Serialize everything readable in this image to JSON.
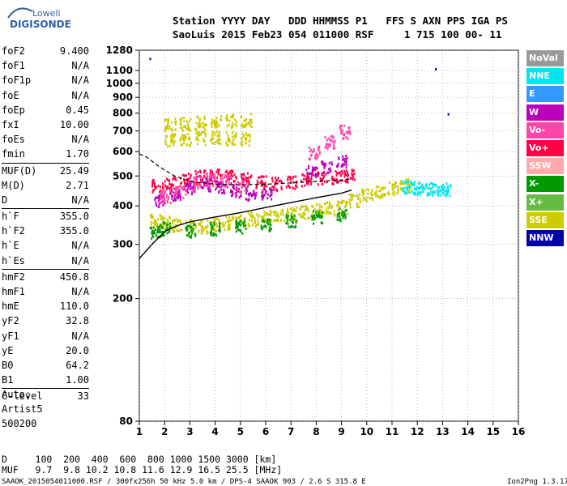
{
  "logo": {
    "line1": "Lowell",
    "line2": "DIGISONDE"
  },
  "header": {
    "line1": "Station YYYY DAY   DDD HHMMSS P1   FFS S AXN PPS IGA PS",
    "line2": "SaoLuis 2015 Feb23 054 011000 RSF     1 715 100 00- 11"
  },
  "params": [
    {
      "name": "foF2",
      "value": "9.400"
    },
    {
      "name": "foF1",
      "value": "N/A"
    },
    {
      "name": "foF1p",
      "value": "N/A"
    },
    {
      "name": "foE",
      "value": "N/A"
    },
    {
      "name": "foEp",
      "value": "0.45"
    },
    {
      "name": "fxI",
      "value": "10.00"
    },
    {
      "name": "foEs",
      "value": "N/A"
    },
    {
      "name": "fmin",
      "value": "1.70"
    },
    {
      "name": "MUF(D)",
      "value": "25.49"
    },
    {
      "name": "M(D)",
      "value": "2.71"
    },
    {
      "name": "D",
      "value": "N/A"
    },
    {
      "name": "h`F",
      "value": "355.0"
    },
    {
      "name": "h`F2",
      "value": "355.0"
    },
    {
      "name": "h`E",
      "value": "N/A"
    },
    {
      "name": "h`Es",
      "value": "N/A"
    },
    {
      "name": "hmF2",
      "value": "450.8"
    },
    {
      "name": "hmF1",
      "value": "N/A"
    },
    {
      "name": "hmE",
      "value": "110.0"
    },
    {
      "name": "yF2",
      "value": "32.8"
    },
    {
      "name": "yF1",
      "value": "N/A"
    },
    {
      "name": "yE",
      "value": "20.0"
    },
    {
      "name": "B0",
      "value": "64.2"
    },
    {
      "name": "B1",
      "value": "1.00"
    },
    {
      "name": "C-level",
      "value": "33"
    }
  ],
  "auto": {
    "line1": "Auto:",
    "line2": "Artist5",
    "line3": "500200"
  },
  "legend": [
    {
      "label": "NoVal",
      "color": "#999999"
    },
    {
      "label": "NNE",
      "color": "#00e5ee"
    },
    {
      "label": "E",
      "color": "#3399ff"
    },
    {
      "label": "W",
      "color": "#bb00bb"
    },
    {
      "label": "Vo-",
      "color": "#ff44aa"
    },
    {
      "label": "Vo+",
      "color": "#ff0044"
    },
    {
      "label": "SSW",
      "color": "#ffaaaa"
    },
    {
      "label": "X-",
      "color": "#009900"
    },
    {
      "label": "X+",
      "color": "#66bb44"
    },
    {
      "label": "SSE",
      "color": "#cccc00"
    },
    {
      "label": "NNW",
      "color": "#0000aa"
    }
  ],
  "footer": {
    "dist_line": "D     100  200  400  600  800 1000 1500 3000 [km]",
    "muf_line": "MUF   9.7  9.8 10.2 10.8 11.6 12.9 16.5 25.5 [MHz]",
    "file_line": "SAAOK_2015054011000.RSF / 300fx256h 50 kHz 5.0 km / DPS-4 SAAOK 903 / 2.6 S 315.8 E",
    "version": "Ion2Png 1.3.17"
  },
  "chart_data": {
    "type": "scatter",
    "xlim": [
      1,
      16
    ],
    "ylim": [
      80,
      1280
    ],
    "yscale": "log",
    "x_ticks": [
      "1",
      "2",
      "3",
      "4",
      "5",
      "6",
      "7",
      "8",
      "9",
      "10",
      "11",
      "12",
      "13",
      "14",
      "15",
      "16"
    ],
    "y_ticks": [
      "80",
      "200",
      "300",
      "400",
      "500",
      "600",
      "700",
      "800",
      "900",
      "1000",
      "1100",
      "1280"
    ],
    "grid": true,
    "legend_position": "right",
    "series": [
      {
        "name": "SSE",
        "points": [
          [
            1.6,
            360
          ],
          [
            2.0,
            355
          ],
          [
            2.5,
            350
          ],
          [
            3.0,
            345
          ],
          [
            3.5,
            345
          ],
          [
            4.0,
            350
          ],
          [
            4.5,
            355
          ],
          [
            5.0,
            360
          ],
          [
            5.5,
            365
          ],
          [
            6.0,
            370
          ],
          [
            6.5,
            375
          ],
          [
            7.0,
            380
          ],
          [
            7.5,
            385
          ],
          [
            8.0,
            390
          ],
          [
            8.5,
            395
          ],
          [
            9.0,
            400
          ],
          [
            9.5,
            420
          ],
          [
            10.0,
            440
          ],
          [
            10.5,
            450
          ],
          [
            11.0,
            460
          ],
          [
            11.5,
            470
          ],
          [
            2.2,
            740
          ],
          [
            2.8,
            745
          ],
          [
            3.4,
            750
          ],
          [
            4.0,
            755
          ],
          [
            4.6,
            760
          ],
          [
            5.2,
            765
          ],
          [
            2.2,
            660
          ],
          [
            2.8,
            665
          ],
          [
            3.4,
            670
          ],
          [
            4.0,
            672
          ],
          [
            4.6,
            668
          ],
          [
            5.2,
            665
          ]
        ]
      },
      {
        "name": "Vo+",
        "points": [
          [
            1.7,
            470
          ],
          [
            2.2,
            480
          ],
          [
            2.8,
            490
          ],
          [
            3.4,
            500
          ],
          [
            4.0,
            505
          ],
          [
            4.6,
            500
          ],
          [
            5.2,
            490
          ],
          [
            5.8,
            480
          ],
          [
            6.4,
            475
          ],
          [
            7.0,
            480
          ],
          [
            7.6,
            490
          ],
          [
            8.2,
            495
          ],
          [
            8.8,
            500
          ],
          [
            9.3,
            505
          ]
        ]
      },
      {
        "name": "W",
        "points": [
          [
            1.8,
            420
          ],
          [
            2.4,
            440
          ],
          [
            3.0,
            460
          ],
          [
            3.6,
            470
          ],
          [
            4.2,
            465
          ],
          [
            4.8,
            450
          ],
          [
            5.4,
            440
          ],
          [
            6.0,
            445
          ],
          [
            7.8,
            520
          ],
          [
            8.4,
            540
          ],
          [
            9.0,
            560
          ]
        ]
      },
      {
        "name": "Vo-",
        "points": [
          [
            2.0,
            430
          ],
          [
            2.6,
            450
          ],
          [
            3.2,
            480
          ],
          [
            3.8,
            490
          ],
          [
            4.4,
            485
          ],
          [
            5.0,
            470
          ],
          [
            7.9,
            600
          ],
          [
            8.5,
            650
          ],
          [
            9.1,
            700
          ]
        ]
      },
      {
        "name": "X-",
        "points": [
          [
            1.6,
            330
          ],
          [
            2.0,
            340
          ],
          [
            3.0,
            335
          ],
          [
            4.0,
            340
          ],
          [
            5.0,
            345
          ],
          [
            6.0,
            350
          ],
          [
            7.0,
            360
          ],
          [
            8.0,
            370
          ],
          [
            9.0,
            380
          ]
        ]
      },
      {
        "name": "NNE",
        "points": [
          [
            11.6,
            462
          ],
          [
            12.0,
            460
          ],
          [
            12.4,
            458
          ],
          [
            12.8,
            456
          ],
          [
            13.1,
            455
          ]
        ]
      },
      {
        "name": "NNW",
        "points": [
          [
            1.4,
            1210
          ],
          [
            12.7,
            1120
          ],
          [
            13.2,
            800
          ]
        ]
      }
    ],
    "profile_line": [
      [
        1.0,
        270
      ],
      [
        1.5,
        300
      ],
      [
        2.0,
        330
      ],
      [
        2.5,
        345
      ],
      [
        3.0,
        355
      ],
      [
        4.0,
        368
      ],
      [
        5.0,
        380
      ],
      [
        6.0,
        395
      ],
      [
        7.0,
        410
      ],
      [
        8.0,
        425
      ],
      [
        9.0,
        440
      ],
      [
        9.4,
        450
      ]
    ],
    "trace_line": [
      [
        1.0,
        590
      ],
      [
        1.3,
        575
      ],
      [
        1.8,
        535
      ],
      [
        2.4,
        500
      ],
      [
        3.0,
        480
      ],
      [
        4.0,
        470
      ],
      [
        5.0,
        468
      ],
      [
        6.0,
        470
      ],
      [
        7.0,
        475
      ],
      [
        8.0,
        480
      ],
      [
        9.0,
        485
      ],
      [
        9.4,
        490
      ]
    ]
  }
}
